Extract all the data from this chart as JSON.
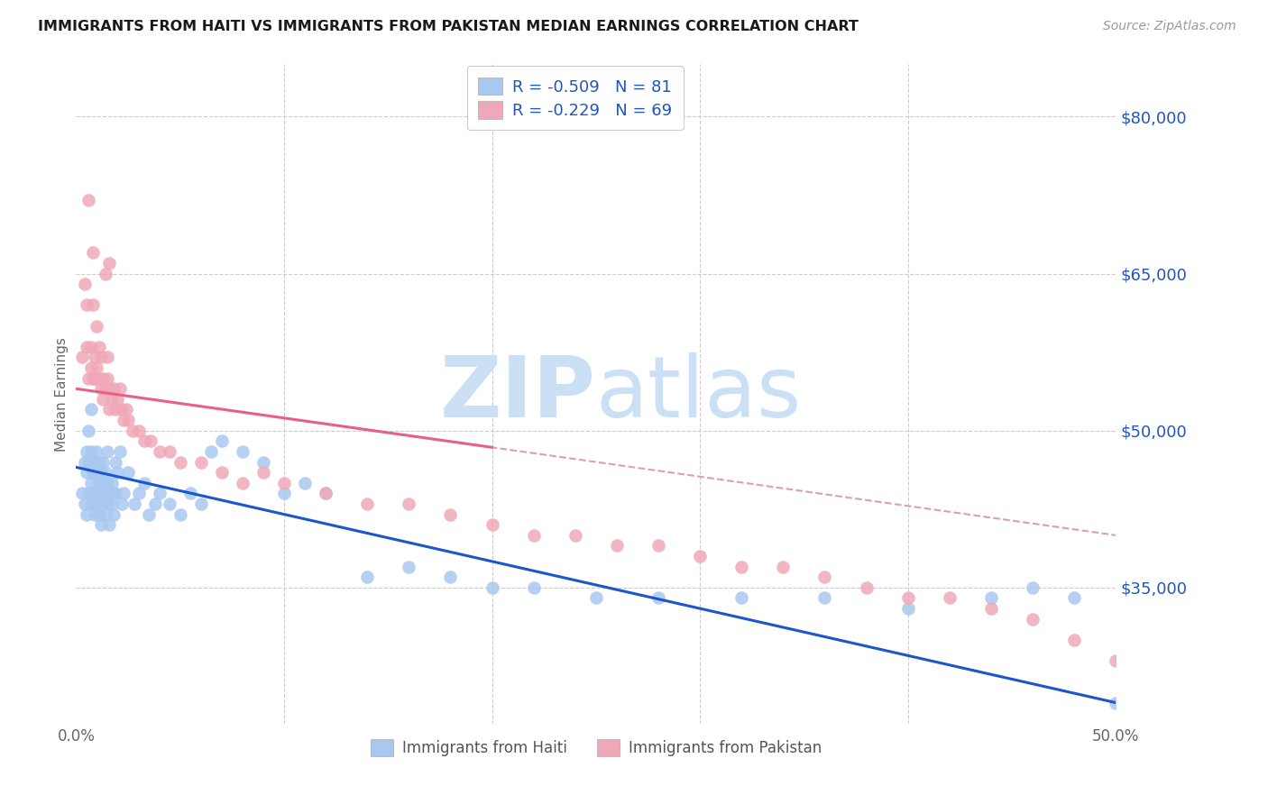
{
  "title": "IMMIGRANTS FROM HAITI VS IMMIGRANTS FROM PAKISTAN MEDIAN EARNINGS CORRELATION CHART",
  "source": "Source: ZipAtlas.com",
  "ylabel": "Median Earnings",
  "xlim": [
    0.0,
    0.5
  ],
  "ylim": [
    22000,
    85000
  ],
  "yticks": [
    35000,
    50000,
    65000,
    80000
  ],
  "ytick_labels": [
    "$35,000",
    "$50,000",
    "$65,000",
    "$80,000"
  ],
  "xticks": [
    0.0,
    0.1,
    0.2,
    0.3,
    0.4,
    0.5
  ],
  "xtick_labels": [
    "0.0%",
    "",
    "",
    "",
    "",
    "50.0%"
  ],
  "haiti_R": -0.509,
  "haiti_N": 81,
  "pakistan_R": -0.229,
  "pakistan_N": 69,
  "haiti_color": "#a8c8f0",
  "pakistan_color": "#f0a8b8",
  "haiti_line_color": "#1a56cc",
  "pakistan_line_color": "#e8608a",
  "pakistan_dash_color": "#d8a0b8",
  "background_color": "#ffffff",
  "watermark_color": "#cce0f5",
  "title_color": "#1a1a1a",
  "source_color": "#999999",
  "legend_text_color": "#2255bb",
  "haiti_scatter_x": [
    0.003,
    0.004,
    0.004,
    0.005,
    0.005,
    0.005,
    0.006,
    0.006,
    0.006,
    0.007,
    0.007,
    0.007,
    0.007,
    0.008,
    0.008,
    0.008,
    0.009,
    0.009,
    0.009,
    0.01,
    0.01,
    0.01,
    0.011,
    0.011,
    0.011,
    0.012,
    0.012,
    0.012,
    0.013,
    0.013,
    0.013,
    0.014,
    0.014,
    0.014,
    0.015,
    0.015,
    0.015,
    0.016,
    0.016,
    0.017,
    0.017,
    0.018,
    0.018,
    0.019,
    0.019,
    0.02,
    0.021,
    0.022,
    0.023,
    0.025,
    0.028,
    0.03,
    0.033,
    0.035,
    0.038,
    0.04,
    0.045,
    0.05,
    0.055,
    0.06,
    0.065,
    0.07,
    0.08,
    0.09,
    0.1,
    0.11,
    0.12,
    0.14,
    0.16,
    0.18,
    0.2,
    0.22,
    0.25,
    0.28,
    0.32,
    0.36,
    0.4,
    0.44,
    0.46,
    0.48,
    0.5
  ],
  "haiti_scatter_y": [
    44000,
    47000,
    43000,
    46000,
    42000,
    48000,
    47000,
    44000,
    50000,
    45000,
    48000,
    43000,
    52000,
    46000,
    43000,
    47000,
    44000,
    47000,
    42000,
    46000,
    48000,
    43000,
    45000,
    47000,
    42000,
    44000,
    46000,
    41000,
    45000,
    43000,
    47000,
    44000,
    42000,
    46000,
    45000,
    43000,
    48000,
    44000,
    41000,
    45000,
    43000,
    44000,
    42000,
    47000,
    44000,
    46000,
    48000,
    43000,
    44000,
    46000,
    43000,
    44000,
    45000,
    42000,
    43000,
    44000,
    43000,
    42000,
    44000,
    43000,
    48000,
    49000,
    48000,
    47000,
    44000,
    45000,
    44000,
    36000,
    37000,
    36000,
    35000,
    35000,
    34000,
    34000,
    34000,
    34000,
    33000,
    34000,
    35000,
    34000,
    24000
  ],
  "pakistan_scatter_x": [
    0.003,
    0.004,
    0.005,
    0.005,
    0.006,
    0.007,
    0.007,
    0.008,
    0.008,
    0.009,
    0.009,
    0.01,
    0.01,
    0.011,
    0.011,
    0.012,
    0.012,
    0.013,
    0.013,
    0.014,
    0.015,
    0.015,
    0.016,
    0.016,
    0.017,
    0.018,
    0.019,
    0.02,
    0.021,
    0.022,
    0.023,
    0.024,
    0.025,
    0.027,
    0.03,
    0.033,
    0.036,
    0.04,
    0.045,
    0.05,
    0.06,
    0.07,
    0.08,
    0.09,
    0.1,
    0.12,
    0.14,
    0.16,
    0.18,
    0.2,
    0.22,
    0.24,
    0.26,
    0.28,
    0.3,
    0.32,
    0.34,
    0.36,
    0.38,
    0.4,
    0.42,
    0.44,
    0.46,
    0.48,
    0.5,
    0.006,
    0.008,
    0.014,
    0.016
  ],
  "pakistan_scatter_y": [
    57000,
    64000,
    58000,
    62000,
    55000,
    56000,
    58000,
    55000,
    62000,
    57000,
    55000,
    60000,
    56000,
    55000,
    58000,
    54000,
    57000,
    55000,
    53000,
    54000,
    55000,
    57000,
    54000,
    52000,
    53000,
    54000,
    52000,
    53000,
    54000,
    52000,
    51000,
    52000,
    51000,
    50000,
    50000,
    49000,
    49000,
    48000,
    48000,
    47000,
    47000,
    46000,
    45000,
    46000,
    45000,
    44000,
    43000,
    43000,
    42000,
    41000,
    40000,
    40000,
    39000,
    39000,
    38000,
    37000,
    37000,
    36000,
    35000,
    34000,
    34000,
    33000,
    32000,
    30000,
    28000,
    72000,
    67000,
    65000,
    66000
  ]
}
